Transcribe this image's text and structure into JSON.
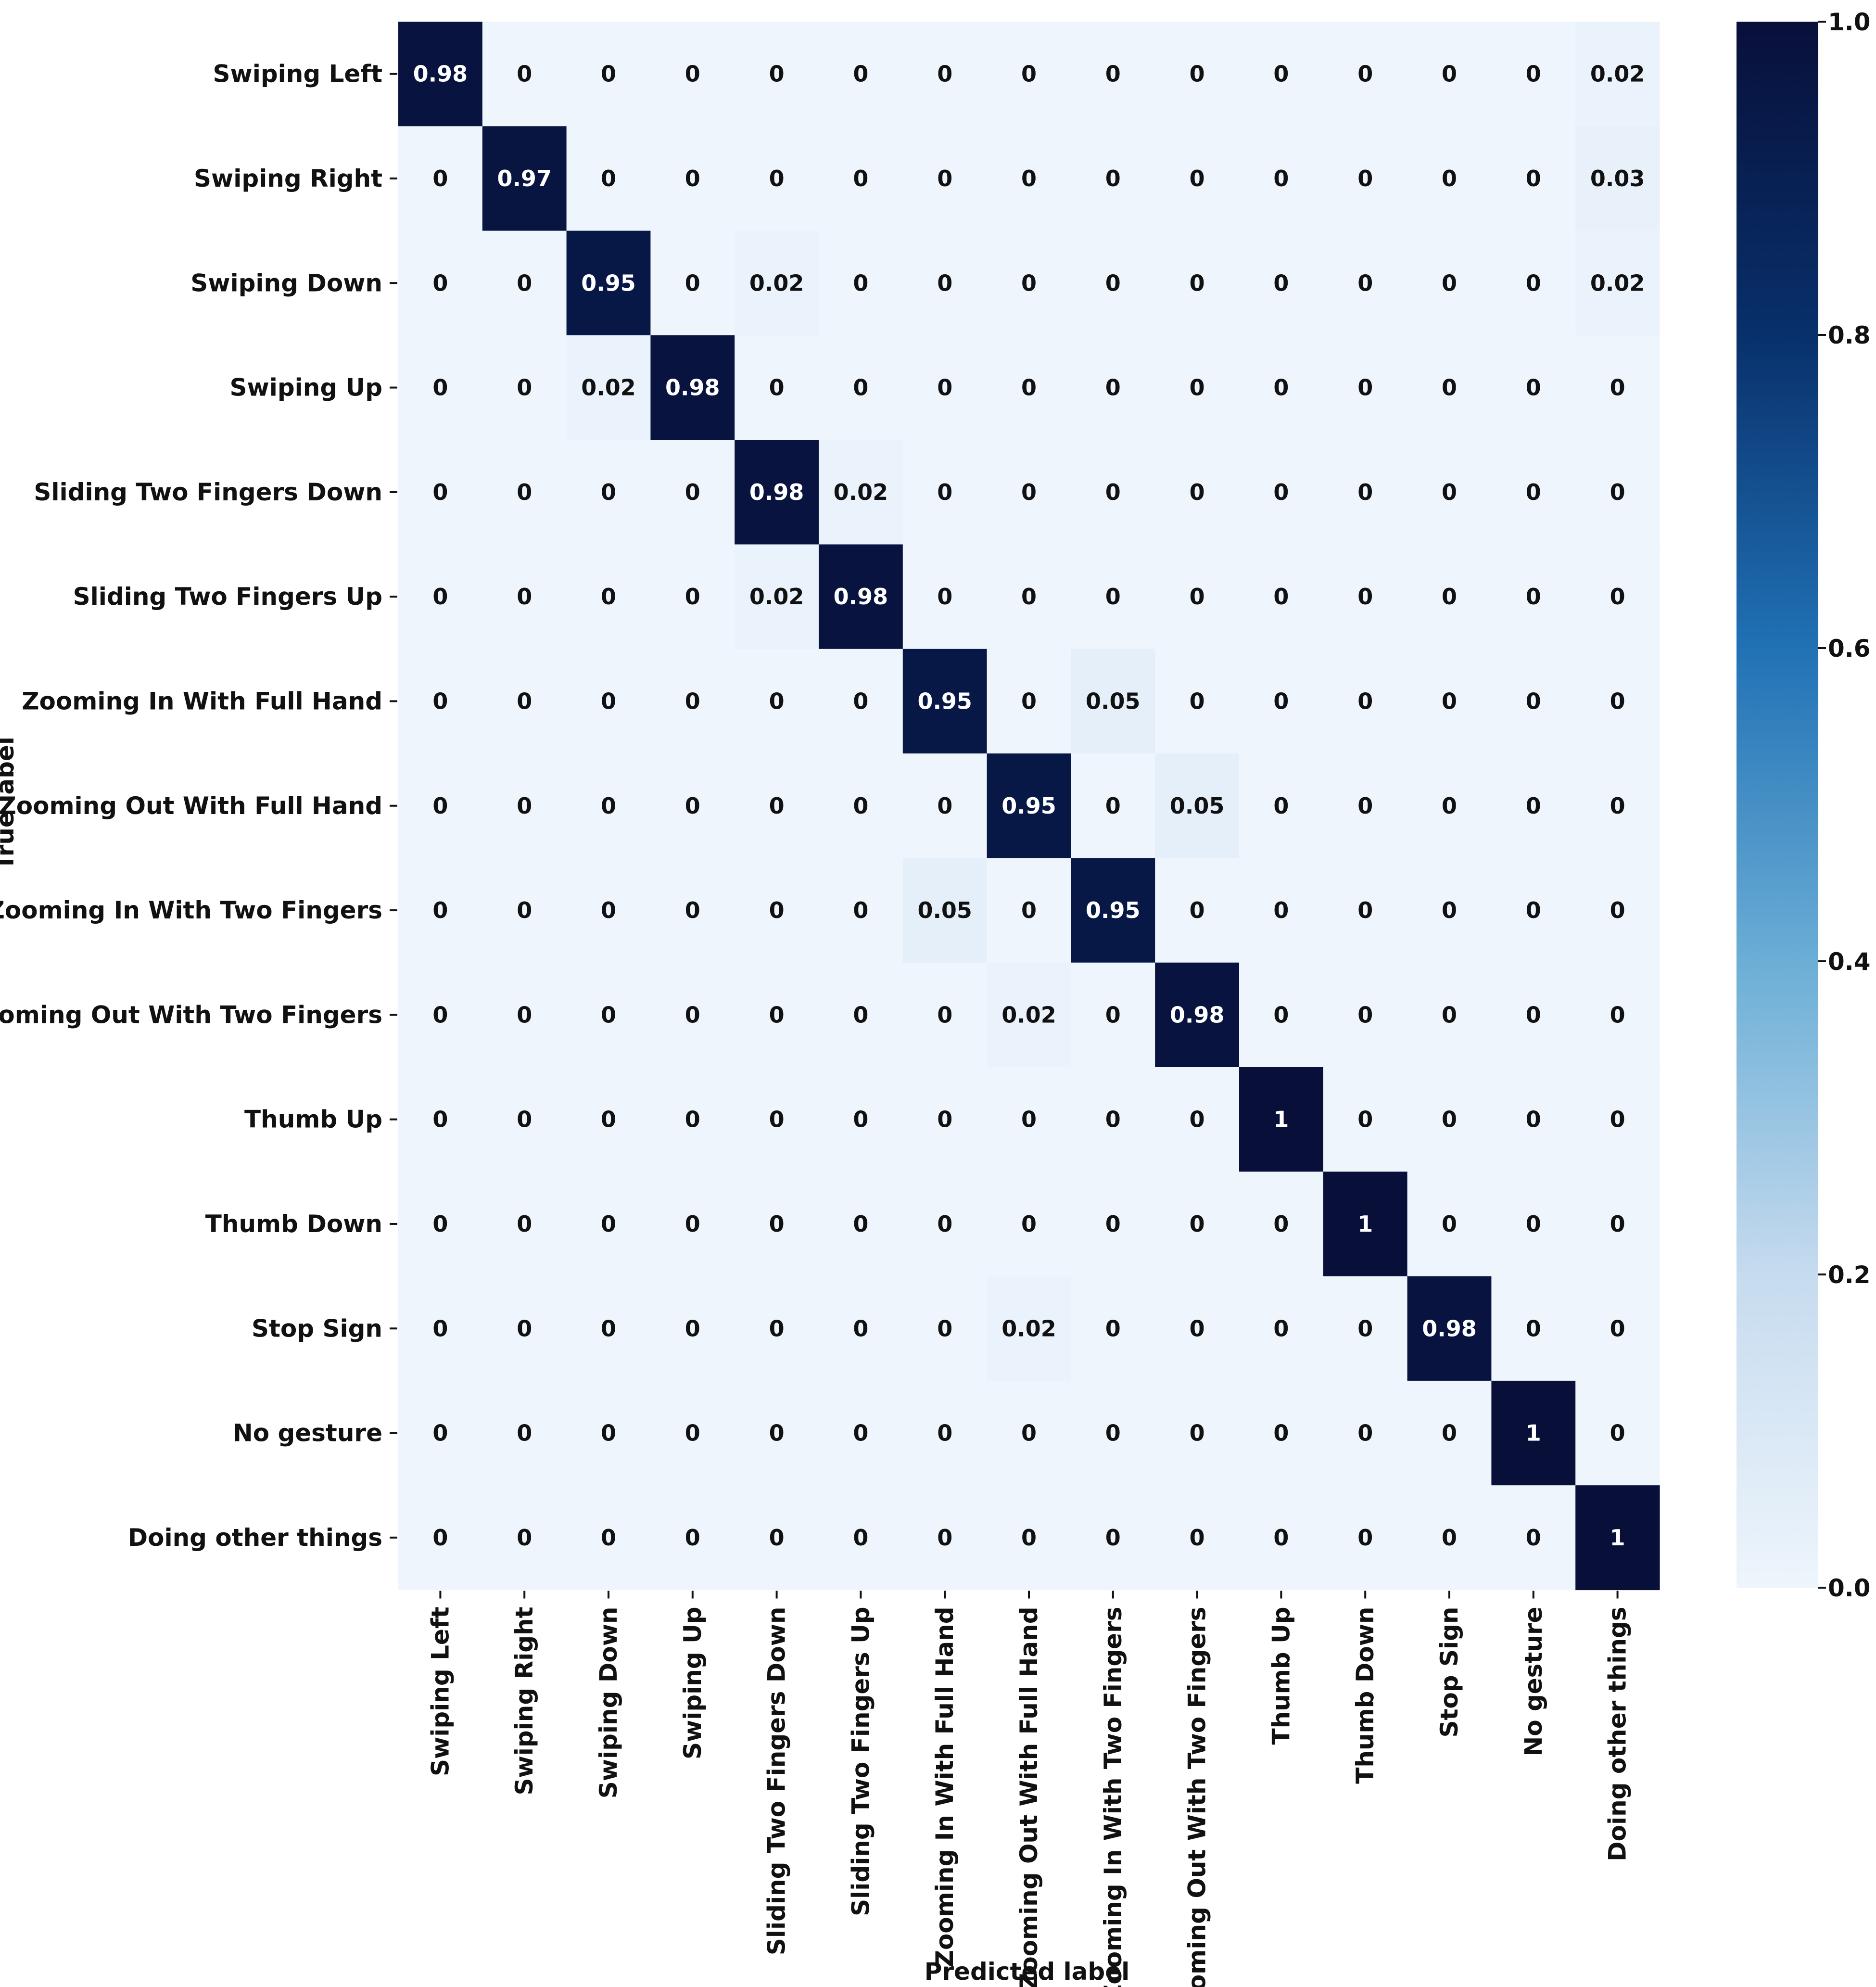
{
  "chart_data": {
    "type": "heatmap",
    "title": "",
    "xlabel": "Predicted label",
    "ylabel": "True label",
    "labels": [
      "Swiping Left",
      "Swiping Right",
      "Swiping Down",
      "Swiping Up",
      "Sliding Two Fingers Down",
      "Sliding Two Fingers Up",
      "Zooming In With Full Hand",
      "Zooming Out With Full Hand",
      "Zooming In With Two Fingers",
      "Zooming Out With Two Fingers",
      "Thumb Up",
      "Thumb Down",
      "Stop Sign",
      "No gesture",
      "Doing other things"
    ],
    "matrix": [
      [
        0.98,
        0,
        0,
        0,
        0,
        0,
        0,
        0,
        0,
        0,
        0,
        0,
        0,
        0,
        0.02
      ],
      [
        0,
        0.97,
        0,
        0,
        0,
        0,
        0,
        0,
        0,
        0,
        0,
        0,
        0,
        0,
        0.03
      ],
      [
        0,
        0,
        0.95,
        0,
        0.02,
        0,
        0,
        0,
        0,
        0,
        0,
        0,
        0,
        0,
        0.02
      ],
      [
        0,
        0,
        0.02,
        0.98,
        0,
        0,
        0,
        0,
        0,
        0,
        0,
        0,
        0,
        0,
        0
      ],
      [
        0,
        0,
        0,
        0,
        0.98,
        0.02,
        0,
        0,
        0,
        0,
        0,
        0,
        0,
        0,
        0
      ],
      [
        0,
        0,
        0,
        0,
        0.02,
        0.98,
        0,
        0,
        0,
        0,
        0,
        0,
        0,
        0,
        0
      ],
      [
        0,
        0,
        0,
        0,
        0,
        0,
        0.95,
        0,
        0.05,
        0,
        0,
        0,
        0,
        0,
        0
      ],
      [
        0,
        0,
        0,
        0,
        0,
        0,
        0,
        0.95,
        0,
        0.05,
        0,
        0,
        0,
        0,
        0
      ],
      [
        0,
        0,
        0,
        0,
        0,
        0,
        0.05,
        0,
        0.95,
        0,
        0,
        0,
        0,
        0,
        0
      ],
      [
        0,
        0,
        0,
        0,
        0,
        0,
        0,
        0.02,
        0,
        0.98,
        0,
        0,
        0,
        0,
        0
      ],
      [
        0,
        0,
        0,
        0,
        0,
        0,
        0,
        0,
        0,
        0,
        1,
        0,
        0,
        0,
        0
      ],
      [
        0,
        0,
        0,
        0,
        0,
        0,
        0,
        0,
        0,
        0,
        0,
        1,
        0,
        0,
        0
      ],
      [
        0,
        0,
        0,
        0,
        0,
        0,
        0,
        0.02,
        0,
        0,
        0,
        0,
        0.98,
        0,
        0
      ],
      [
        0,
        0,
        0,
        0,
        0,
        0,
        0,
        0,
        0,
        0,
        0,
        0,
        0,
        1,
        0
      ],
      [
        0,
        0,
        0,
        0,
        0,
        0,
        0,
        0,
        0,
        0,
        0,
        0,
        0,
        0,
        1
      ]
    ],
    "colorbar": {
      "range": [
        0.0,
        1.0
      ],
      "ticks": [
        "0.0",
        "0.2",
        "0.4",
        "0.6",
        "0.8",
        "1.0"
      ],
      "colormap": "Blues",
      "low_color": "#eef5fc",
      "high_color": "#08103a"
    }
  }
}
